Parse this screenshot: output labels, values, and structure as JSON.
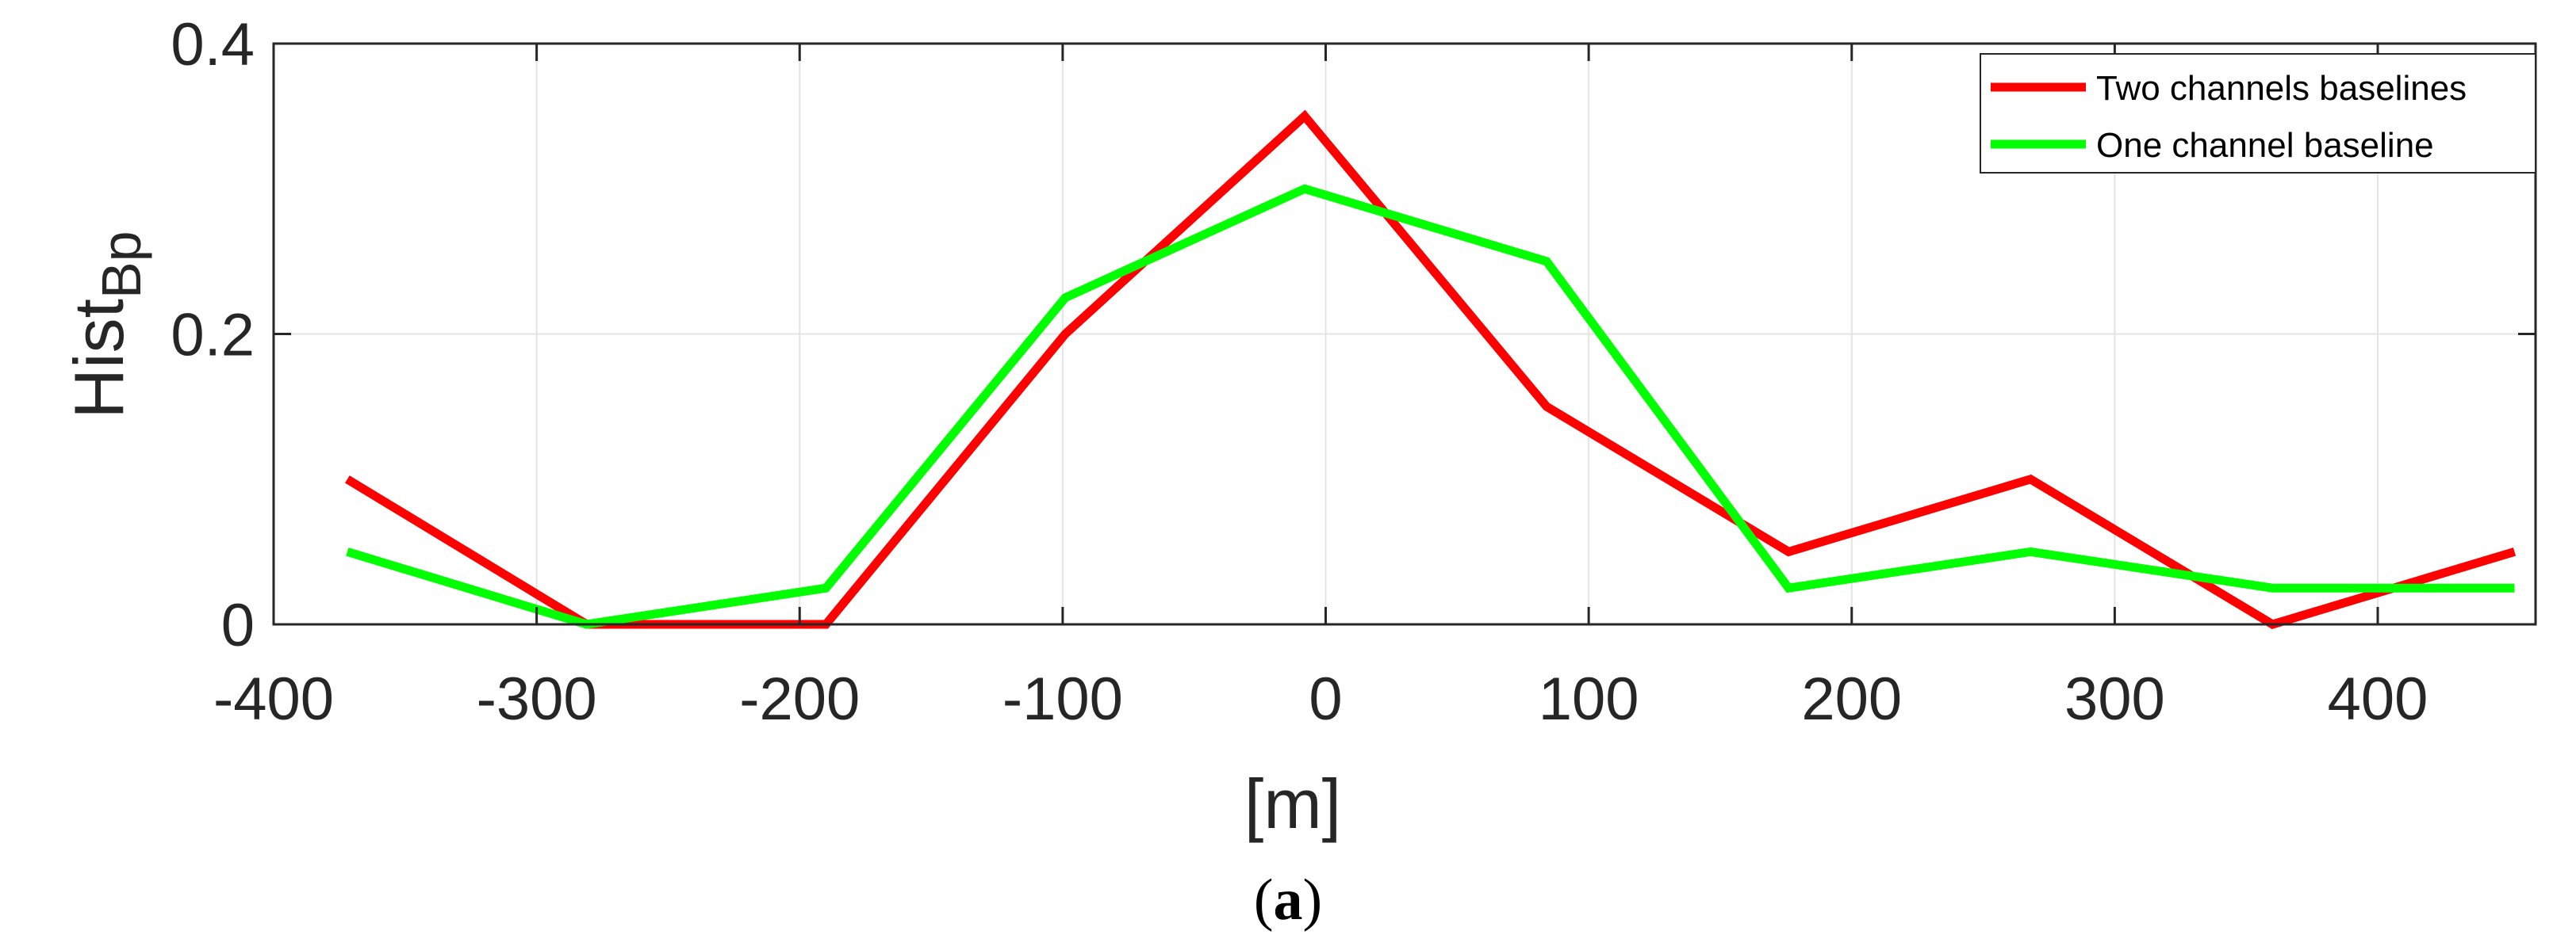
{
  "chart_data": {
    "type": "line",
    "title": "",
    "xlabel": "[m]",
    "ylabel_main": "Hist",
    "ylabel_sub": "Bp",
    "xlim": [
      -400,
      460
    ],
    "ylim": [
      0,
      0.4
    ],
    "xticks": [
      -400,
      -300,
      -200,
      -100,
      0,
      100,
      200,
      300,
      400
    ],
    "xtick_labels": [
      "-400",
      "-300",
      "-200",
      "-100",
      "0",
      "100",
      "200",
      "300",
      "400"
    ],
    "yticks": [
      0,
      0.2,
      0.4
    ],
    "ytick_labels": [
      "0",
      "0.2",
      "0.4"
    ],
    "grid": true,
    "legend_position": "top-right",
    "x": [
      -372,
      -281,
      -190,
      -99,
      -8,
      84,
      176,
      268,
      360,
      452
    ],
    "series": [
      {
        "name": "Two channels baselines",
        "color": "#ff0000",
        "values": [
          0.1,
          0.0,
          0.0,
          0.2,
          0.35,
          0.15,
          0.05,
          0.1,
          0.0,
          0.05
        ]
      },
      {
        "name": "One channel baseline",
        "color": "#00ff00",
        "values": [
          0.05,
          0.0,
          0.025,
          0.225,
          0.3,
          0.25,
          0.025,
          0.05,
          0.025,
          0.025
        ]
      }
    ]
  },
  "caption": {
    "open": "(",
    "letter": "a",
    "close": ")"
  }
}
